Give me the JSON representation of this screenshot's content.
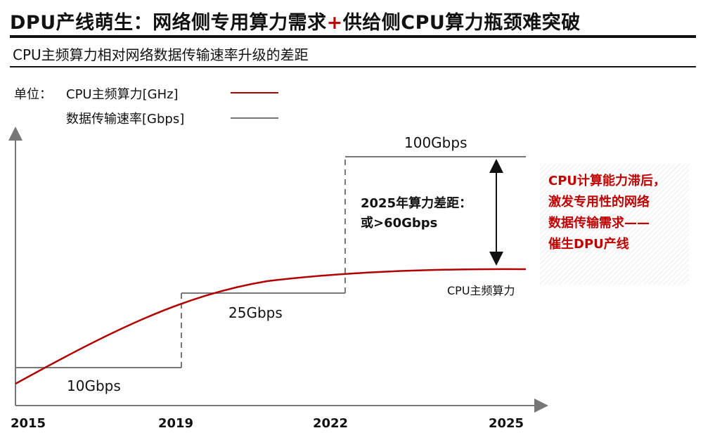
{
  "header": {
    "title_main": "DPU产线萌生：网络侧专用算力需求",
    "title_plus": "+",
    "title_tail": "供给侧CPU算力瓶颈难突破",
    "subtitle": "CPU主频算力相对网络数据传输速率升级的差距"
  },
  "legend": {
    "unit_label": "单位：",
    "items": [
      {
        "label": "CPU主频算力[GHz]",
        "color": "#b00000"
      },
      {
        "label": "数据传输速率[Gbps]",
        "color": "#777777"
      }
    ]
  },
  "annotations": {
    "gap_title": "2025年算力差距：",
    "gap_value": "或>60Gbps",
    "cpu_curve_label": "CPU主频算力",
    "callout": "CPU计算能力滞后，\n激发专用性的网络\n数据传输需求——\n催生DPU产线",
    "callout_color": "#c00000"
  },
  "chart_data": {
    "type": "line",
    "x_tick_labels": [
      "2015",
      "2019",
      "2022",
      "2025"
    ],
    "series": [
      {
        "name": "数据传输速率[Gbps]",
        "style": "step",
        "color": "#777777",
        "points": [
          {
            "x": "2015",
            "y": 10
          },
          {
            "x": "2019",
            "y": 25
          },
          {
            "x": "2022",
            "y": 100
          },
          {
            "x": "2025",
            "y": 100
          }
        ],
        "point_labels": [
          "10Gbps",
          "25Gbps",
          "100Gbps"
        ]
      },
      {
        "name": "CPU主频算力[GHz]",
        "style": "curve",
        "color": "#b00000",
        "trend": "concave rising, flattening toward 2025"
      }
    ],
    "yaxis_ticks": "none",
    "grid": false
  }
}
